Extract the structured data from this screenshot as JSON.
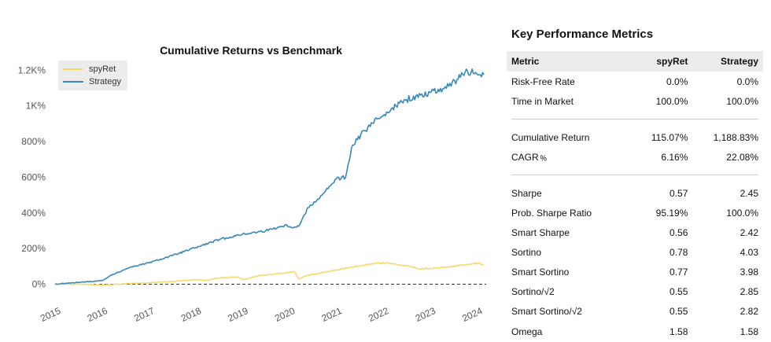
{
  "chart_data": {
    "type": "line",
    "title": "Cumulative Returns vs Benchmark",
    "xlabel": "",
    "ylabel": "",
    "xlim": [
      2015.0,
      2024.2
    ],
    "ylim": [
      -20,
      1250
    ],
    "yticks": [
      0,
      200,
      400,
      600,
      800,
      1000,
      1200
    ],
    "ytick_labels": [
      "0%",
      "200%",
      "400%",
      "600%",
      "800%",
      "1K%",
      "1.2K%"
    ],
    "xticks": [
      2015,
      2016,
      2017,
      2018,
      2019,
      2020,
      2021,
      2022,
      2023,
      2024
    ],
    "xtick_labels": [
      "2015",
      "2016",
      "2017",
      "2018",
      "2019",
      "2020",
      "2021",
      "2022",
      "2023",
      "2024"
    ],
    "legend_position": "top-left",
    "grid": false,
    "zero_line": true,
    "series": [
      {
        "name": "spyRet",
        "color": "#f6d86b",
        "x": [
          2015.0,
          2015.5,
          2016.0,
          2016.5,
          2017.0,
          2017.5,
          2018.0,
          2018.2,
          2018.5,
          2018.9,
          2019.0,
          2019.4,
          2019.9,
          2020.1,
          2020.2,
          2020.3,
          2020.5,
          2020.9,
          2021.3,
          2021.9,
          2022.2,
          2022.5,
          2022.8,
          2023.0,
          2023.4,
          2023.8,
          2024.0,
          2024.15
        ],
        "y": [
          0,
          0,
          -5,
          2,
          8,
          15,
          25,
          20,
          35,
          40,
          25,
          50,
          62,
          70,
          30,
          42,
          55,
          75,
          95,
          120,
          115,
          102,
          85,
          88,
          96,
          112,
          118,
          110
        ]
      },
      {
        "name": "Strategy",
        "color": "#3a88b8",
        "x": [
          2015.0,
          2015.5,
          2016.0,
          2016.2,
          2016.6,
          2017.0,
          2017.5,
          2018.0,
          2018.5,
          2019.0,
          2019.5,
          2019.9,
          2020.1,
          2020.2,
          2020.4,
          2020.7,
          2020.9,
          2021.0,
          2021.2,
          2021.35,
          2021.6,
          2021.9,
          2022.2,
          2022.5,
          2022.8,
          2023.0,
          2023.4,
          2023.6,
          2023.8,
          2024.0,
          2024.15
        ],
        "y": [
          0,
          10,
          20,
          50,
          95,
          120,
          160,
          205,
          250,
          280,
          300,
          330,
          320,
          325,
          430,
          500,
          560,
          590,
          600,
          780,
          860,
          930,
          990,
          1035,
          1060,
          1075,
          1110,
          1150,
          1195,
          1180,
          1175
        ]
      }
    ]
  },
  "metrics": {
    "title": "Key Performance Metrics",
    "headers": [
      "Metric",
      "spyRet",
      "Strategy"
    ],
    "groups": [
      [
        [
          "Risk-Free Rate",
          "0.0%",
          "0.0%"
        ],
        [
          "Time in Market",
          "100.0%",
          "100.0%"
        ]
      ],
      [
        [
          "Cumulative Return",
          "115.07%",
          "1,188.83%"
        ],
        [
          "CAGR﹪",
          "6.16%",
          "22.08%"
        ]
      ],
      [
        [
          "Sharpe",
          "0.57",
          "2.45"
        ],
        [
          "Prob. Sharpe Ratio",
          "95.19%",
          "100.0%"
        ],
        [
          "Smart Sharpe",
          "0.56",
          "2.42"
        ],
        [
          "Sortino",
          "0.78",
          "4.03"
        ],
        [
          "Smart Sortino",
          "0.77",
          "3.98"
        ],
        [
          "Sortino/√2",
          "0.55",
          "2.85"
        ],
        [
          "Smart Sortino/√2",
          "0.55",
          "2.82"
        ],
        [
          "Omega",
          "1.58",
          "1.58"
        ]
      ]
    ]
  }
}
